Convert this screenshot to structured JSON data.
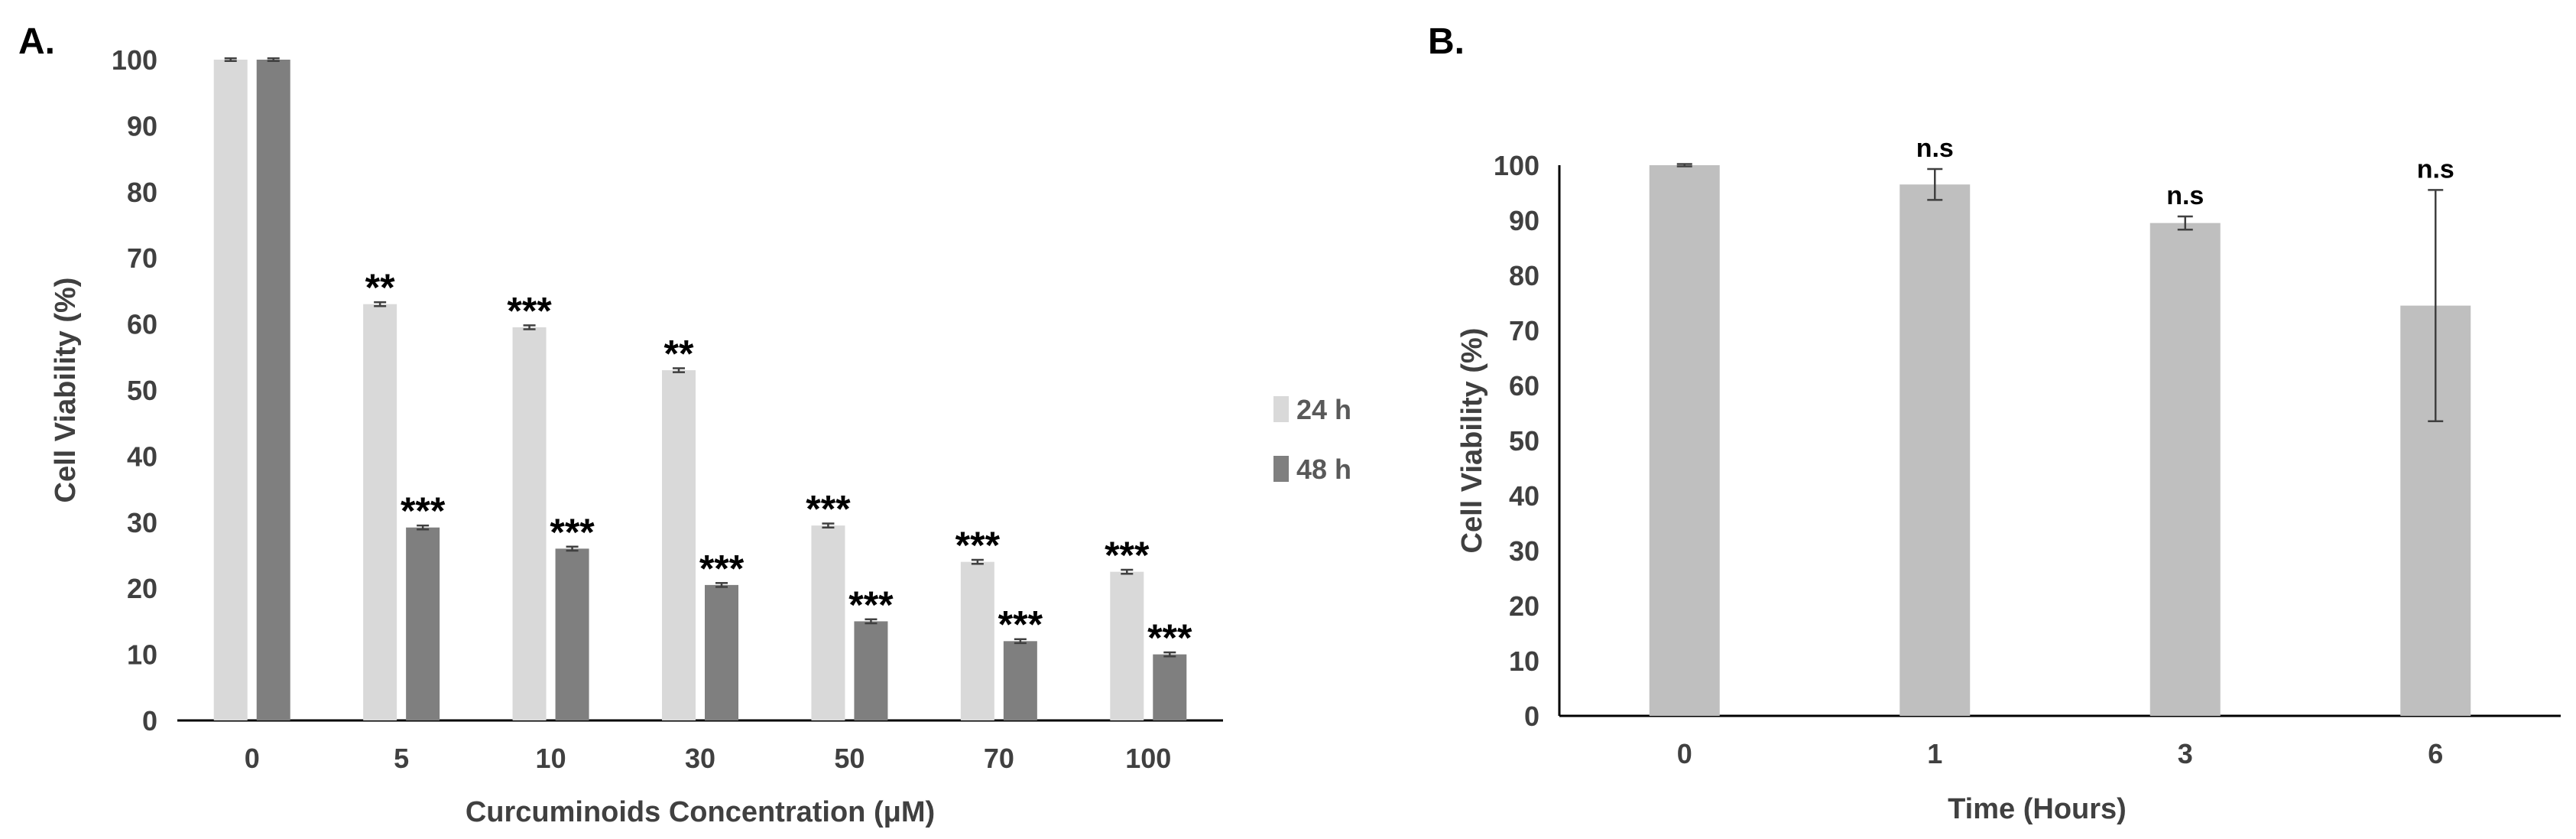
{
  "figure": {
    "panel_a_label": "A.",
    "panel_b_label": "B."
  },
  "colors": {
    "series_24h": "#d9d9d9",
    "series_48h": "#7f7f7f",
    "panel_b_bar": "#bfbfbf",
    "axis": "#000000",
    "error_bar": "#404040",
    "tick_text": "#404040"
  },
  "chart_data": [
    {
      "type": "bar",
      "panel": "A.",
      "title": "",
      "xlabel": "Curcuminoids Concentration (μM)",
      "ylabel": "Cell Viability (%)",
      "categories": [
        "0",
        "5",
        "10",
        "30",
        "50",
        "70",
        "100"
      ],
      "ylim": [
        0,
        100
      ],
      "yticks": [
        0,
        10,
        20,
        30,
        40,
        50,
        60,
        70,
        80,
        90,
        100
      ],
      "grid": false,
      "legend_position": "right",
      "series": [
        {
          "name": "24 h",
          "color": "#d9d9d9",
          "values": [
            100,
            63,
            59.5,
            53,
            29.5,
            24,
            22.5
          ],
          "errors": [
            0.2,
            0.3,
            0.3,
            0.3,
            0.3,
            0.3,
            0.3
          ],
          "annotations": [
            "",
            "**",
            "***",
            "**",
            "***",
            "***",
            "***"
          ]
        },
        {
          "name": "48 h",
          "color": "#7f7f7f",
          "values": [
            100,
            29.2,
            26,
            20.5,
            15,
            12,
            10
          ],
          "errors": [
            0.2,
            0.3,
            0.3,
            0.3,
            0.3,
            0.3,
            0.3
          ],
          "annotations": [
            "",
            "***",
            "***",
            "***",
            "***",
            "***",
            "***"
          ]
        }
      ]
    },
    {
      "type": "bar",
      "panel": "B.",
      "title": "",
      "xlabel": "Time (Hours)",
      "ylabel": "Cell Viability (%)",
      "categories": [
        "0",
        "1",
        "3",
        "6"
      ],
      "ylim": [
        0,
        100
      ],
      "yticks": [
        0,
        10,
        20,
        30,
        40,
        50,
        60,
        70,
        80,
        90,
        100
      ],
      "grid": false,
      "series": [
        {
          "name": "Cell Viability",
          "color": "#bfbfbf",
          "values": [
            100,
            96.5,
            89.5,
            74.5
          ],
          "errors": [
            0.2,
            2.8,
            1.2,
            21
          ],
          "annotations": [
            "",
            "n.s",
            "n.s",
            "n.s"
          ]
        }
      ]
    }
  ]
}
